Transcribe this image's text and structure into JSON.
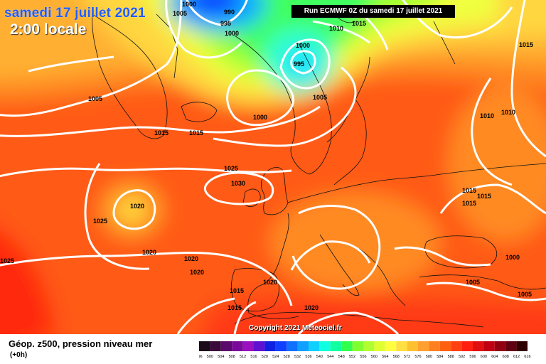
{
  "header": {
    "date": "samedi 17 juillet 2021",
    "time": "2:00 locale",
    "run": "Run ECMWF 0Z du samedi 17 juillet 2021"
  },
  "footer": {
    "title": "Géop. z500, pression niveau mer",
    "subtitle": "(+0h)",
    "copyright": "Copyright 2021 Meteociel.fr"
  },
  "isobar_labels": [
    "1000",
    "1005",
    "990",
    "995",
    "1000",
    "1010",
    "1015",
    "1000",
    "995",
    "1015",
    "1005",
    "1005",
    "1015",
    "1015",
    "1000",
    "1010",
    "1010",
    "1025",
    "1030",
    "1015",
    "1015",
    "1015",
    "1020",
    "1025",
    "1020",
    "1025",
    "1020",
    "1020",
    "1000",
    "1005",
    "1005",
    "1015",
    "1015",
    "1020",
    "1020"
  ],
  "legend": {
    "values": [
      "496",
      "500",
      "504",
      "508",
      "512",
      "516",
      "520",
      "524",
      "528",
      "532",
      "536",
      "540",
      "544",
      "548",
      "552",
      "556",
      "560",
      "564",
      "568",
      "572",
      "576",
      "580",
      "584",
      "588",
      "592",
      "596",
      "600",
      "604",
      "608",
      "612",
      "616"
    ],
    "colors": [
      "#1a0a1a",
      "#3a0a3a",
      "#5a0a6a",
      "#7a0a9a",
      "#9a10c0",
      "#6010d0",
      "#1020e0",
      "#1040ff",
      "#1070ff",
      "#10a0ff",
      "#10d0ff",
      "#10ffe0",
      "#10ffa0",
      "#30ff50",
      "#80ff30",
      "#b0ff30",
      "#e0ff30",
      "#ffff40",
      "#ffe040",
      "#ffc030",
      "#ffa030",
      "#ff8020",
      "#ff6010",
      "#ff4010",
      "#ff2010",
      "#e01010",
      "#c00010",
      "#900010",
      "#600010",
      "#300000"
    ]
  }
}
